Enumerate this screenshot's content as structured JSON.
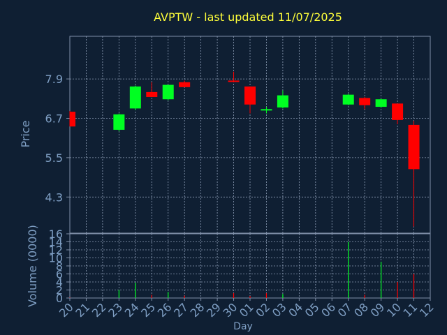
{
  "title": "AVPTW - last updated 11/07/2025",
  "colors": {
    "background": "#0f1f33",
    "axis": "#7f8fa8",
    "grid": "#8f9fb8",
    "title": "#ffff3a",
    "label": "#7f9fc4",
    "up": "#00ff22",
    "down": "#ff0000"
  },
  "chart_data": [
    {
      "type": "candlestick",
      "ylabel": "Price",
      "ylim": [
        3.2,
        9.2
      ],
      "yticks": [
        "7.9",
        "6.7",
        "5.5",
        "4.3"
      ],
      "ytick_values": [
        7.9,
        6.7,
        5.5,
        4.3
      ],
      "grid": true,
      "candles": [
        {
          "day": "20",
          "open": 6.9,
          "high": 6.92,
          "low": 6.45,
          "close": 6.45
        },
        {
          "day": "23",
          "open": 6.35,
          "high": 6.85,
          "low": 6.3,
          "close": 6.82
        },
        {
          "day": "24",
          "open": 7.0,
          "high": 7.7,
          "low": 6.95,
          "close": 7.67
        },
        {
          "day": "25",
          "open": 7.5,
          "high": 7.8,
          "low": 7.35,
          "close": 7.35
        },
        {
          "day": "26",
          "open": 7.28,
          "high": 7.72,
          "low": 7.25,
          "close": 7.72
        },
        {
          "day": "27",
          "open": 7.8,
          "high": 7.85,
          "low": 7.65,
          "close": 7.65
        },
        {
          "day": "30",
          "open": 7.85,
          "high": 8.12,
          "low": 7.8,
          "close": 7.82
        },
        {
          "day": "01",
          "open": 7.67,
          "high": 7.67,
          "low": 6.85,
          "close": 7.12
        },
        {
          "day": "02",
          "open": 6.98,
          "high": 7.05,
          "low": 6.85,
          "close": 6.98
        },
        {
          "day": "03",
          "open": 7.03,
          "high": 7.55,
          "low": 7.0,
          "close": 7.4
        },
        {
          "day": "07",
          "open": 7.12,
          "high": 7.45,
          "low": 7.1,
          "close": 7.42
        },
        {
          "day": "08",
          "open": 7.32,
          "high": 7.35,
          "low": 6.98,
          "close": 7.1
        },
        {
          "day": "09",
          "open": 7.05,
          "high": 7.3,
          "low": 7.02,
          "close": 7.28
        },
        {
          "day": "10",
          "open": 7.15,
          "high": 7.15,
          "low": 6.52,
          "close": 6.65
        },
        {
          "day": "11",
          "open": 6.5,
          "high": 6.62,
          "low": 3.4,
          "close": 5.15
        }
      ]
    },
    {
      "type": "bar",
      "ylabel": "Volume (0000)",
      "ylim": [
        0,
        16
      ],
      "yticks": [
        "16",
        "14",
        "12",
        "10",
        "8",
        "6",
        "4",
        "2",
        "0"
      ],
      "ytick_values": [
        16,
        14,
        12,
        10,
        8,
        6,
        4,
        2,
        0
      ],
      "xlabel": "Day",
      "xticks": [
        "20",
        "21",
        "22",
        "23",
        "24",
        "25",
        "26",
        "27",
        "28",
        "29",
        "30",
        "01",
        "02",
        "03",
        "04",
        "05",
        "06",
        "07",
        "08",
        "09",
        "10",
        "11",
        "12"
      ],
      "grid": true,
      "volumes": [
        {
          "day": "20",
          "value": 0.1,
          "dir": "down"
        },
        {
          "day": "23",
          "value": 2.0,
          "dir": "up"
        },
        {
          "day": "24",
          "value": 3.8,
          "dir": "up"
        },
        {
          "day": "25",
          "value": 0.8,
          "dir": "down"
        },
        {
          "day": "26",
          "value": 1.5,
          "dir": "up"
        },
        {
          "day": "27",
          "value": 0.6,
          "dir": "down"
        },
        {
          "day": "30",
          "value": 1.2,
          "dir": "down"
        },
        {
          "day": "01",
          "value": 0.5,
          "dir": "down"
        },
        {
          "day": "02",
          "value": 1.2,
          "dir": "down"
        },
        {
          "day": "03",
          "value": 1.0,
          "dir": "up"
        },
        {
          "day": "07",
          "value": 14.0,
          "dir": "up"
        },
        {
          "day": "08",
          "value": 0.8,
          "dir": "down"
        },
        {
          "day": "09",
          "value": 9.0,
          "dir": "up"
        },
        {
          "day": "10",
          "value": 4.0,
          "dir": "down"
        },
        {
          "day": "11",
          "value": 6.0,
          "dir": "down"
        }
      ]
    }
  ]
}
